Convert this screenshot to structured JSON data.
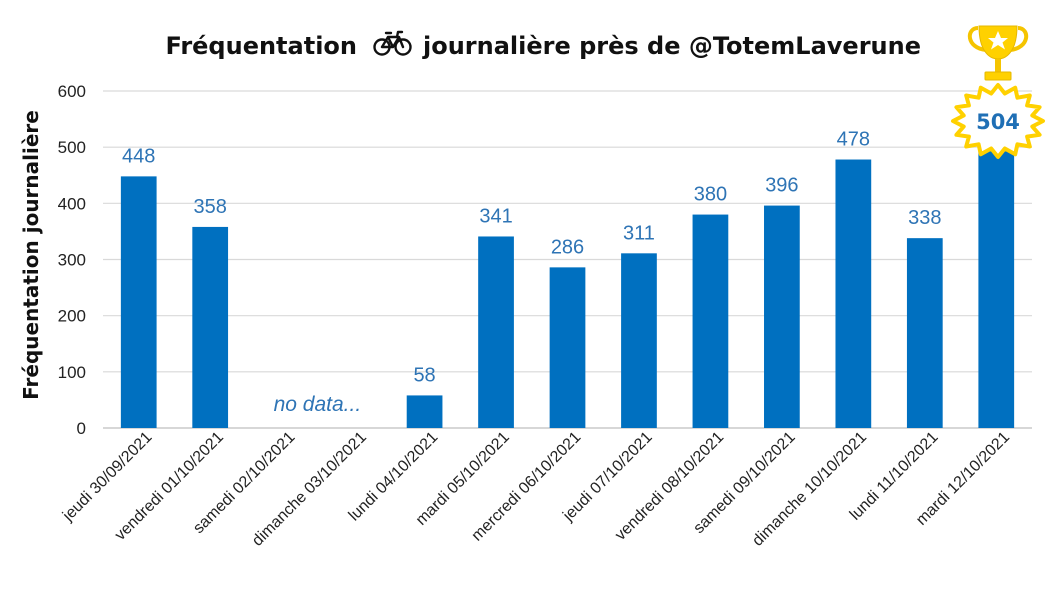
{
  "chart_data": {
    "type": "bar",
    "title_prefix": "Fréquentation",
    "title_suffix": "journalière près de @TotemLaverune",
    "title_icon": "bicycle-icon",
    "ylabel": "Fréquentation journalière",
    "xlabel": "",
    "ylim": [
      0,
      600
    ],
    "yticks": [
      0,
      100,
      200,
      300,
      400,
      500,
      600
    ],
    "grid": true,
    "bar_color": "#0070c0",
    "label_color": "#2e74b5",
    "categories": [
      "jeudi 30/09/2021",
      "vendredi 01/10/2021",
      "samedi 02/10/2021",
      "dimanche 03/10/2021",
      "lundi 04/10/2021",
      "mardi 05/10/2021",
      "mercredi 06/10/2021",
      "jeudi 07/10/2021",
      "vendredi 08/10/2021",
      "samedi 09/10/2021",
      "dimanche 10/10/2021",
      "lundi 11/10/2021",
      "mardi 12/10/2021"
    ],
    "values": [
      448,
      358,
      null,
      null,
      58,
      341,
      286,
      311,
      380,
      396,
      478,
      338,
      504
    ],
    "annotations": {
      "no_data_text": "no data...",
      "record_badge": "504",
      "record_icon": "trophy-icon"
    }
  }
}
